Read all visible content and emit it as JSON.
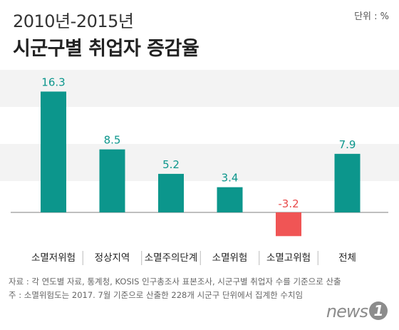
{
  "header": {
    "subtitle": "2010년-2015년",
    "title": "시군구별 취업자 증감율",
    "unit": "단위 : %"
  },
  "footer": {
    "source": "자료 : 각 연도별 자료, 통계청, KOSIS 인구총조사 표본조사, 시군구별 취업자 수를 기준으로 산출",
    "note": "주 : 소멸위험도는 2017. 7월 기준으로 산출한 228개 시군구 단위에서 집계한 수치임"
  },
  "logo": {
    "text": "news",
    "mark": "1"
  },
  "chart_data": {
    "type": "bar",
    "categories": [
      "소멸저위험",
      "정상지역",
      "소멸주의단계",
      "소멸위험",
      "소멸고위험",
      "전체"
    ],
    "values": [
      16.3,
      8.5,
      5.2,
      3.4,
      -3.2,
      7.9
    ],
    "value_labels": [
      "16.3",
      "8.5",
      "5.2",
      "3.4",
      "-3.2",
      "7.9"
    ],
    "colors": {
      "positive": "#0c968c",
      "negative": "#f05555",
      "positive_label": "#0c968c",
      "negative_label": "#e84a4a",
      "baseline": "#aaaaaa"
    },
    "ylim": [
      -4,
      18
    ],
    "grid": false,
    "legend": "none"
  }
}
